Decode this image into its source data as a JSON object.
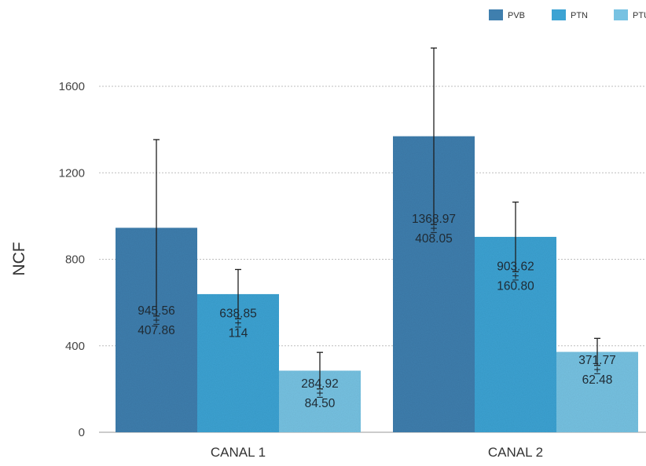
{
  "chart_data": {
    "type": "bar",
    "title": "",
    "xlabel": "",
    "ylabel": "NCF",
    "ylim": [
      0,
      1600
    ],
    "yticks": [
      "0",
      "400",
      "800",
      "1200",
      "1600"
    ],
    "grid": true,
    "legend_position": "top-right",
    "categories": [
      "CANAL 1",
      "CANAL 2"
    ],
    "series": [
      {
        "name": "PVB",
        "color": "#3f7fae",
        "values": [
          945.56,
          1368.97
        ],
        "errors": [
          407.86,
          408.05
        ],
        "value_labels": [
          "945.56",
          "1368.97"
        ],
        "error_labels": [
          "407.86",
          "408.05"
        ]
      },
      {
        "name": "PTN",
        "color": "#3ca3d3",
        "values": [
          638.85,
          903.62
        ],
        "errors": [
          114,
          160.8
        ],
        "value_labels": [
          "638.85",
          "903.62"
        ],
        "error_labels": [
          "114",
          "160.80"
        ]
      },
      {
        "name": "PTU",
        "color": "#77c2e2",
        "values": [
          284.92,
          371.77
        ],
        "errors": [
          84.5,
          62.48
        ],
        "value_labels": [
          "284.92",
          "371.77"
        ],
        "error_labels": [
          "84.50",
          "62.48"
        ]
      }
    ],
    "pm_symbol": "±"
  }
}
